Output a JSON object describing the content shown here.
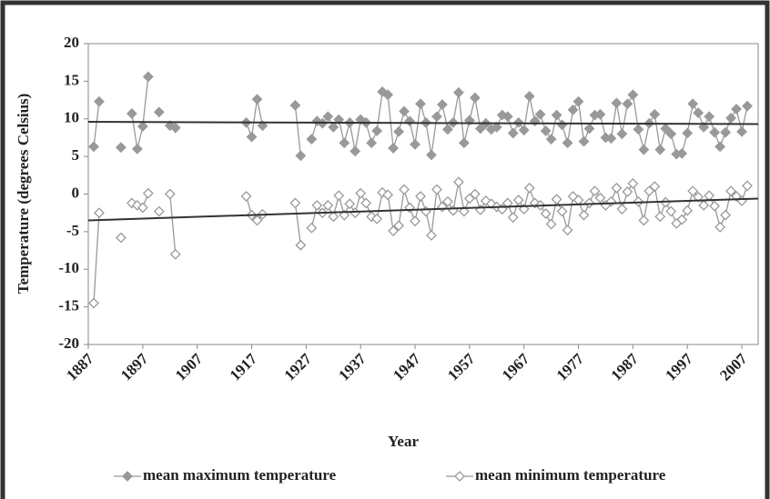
{
  "chart_data": {
    "type": "line",
    "xlabel": "Year",
    "ylabel": "Temperature (degrees Celsius)",
    "xlim": [
      1887,
      2010
    ],
    "ylim": [
      -20,
      20
    ],
    "xticks": [
      1887,
      1897,
      1907,
      1917,
      1927,
      1937,
      1947,
      1957,
      1967,
      1977,
      1987,
      1997,
      2007
    ],
    "yticks": [
      -20,
      -15,
      -10,
      -5,
      0,
      5,
      10,
      15,
      20
    ],
    "x": [
      1888,
      1889,
      1890,
      1891,
      1892,
      1893,
      1894,
      1895,
      1896,
      1897,
      1898,
      1899,
      1900,
      1901,
      1902,
      1903,
      1904,
      1905,
      1906,
      1907,
      1908,
      1909,
      1910,
      1911,
      1912,
      1913,
      1914,
      1915,
      1916,
      1917,
      1918,
      1919,
      1920,
      1921,
      1922,
      1923,
      1924,
      1925,
      1926,
      1927,
      1928,
      1929,
      1930,
      1931,
      1932,
      1933,
      1934,
      1935,
      1936,
      1937,
      1938,
      1939,
      1940,
      1941,
      1942,
      1943,
      1944,
      1945,
      1946,
      1947,
      1948,
      1949,
      1950,
      1951,
      1952,
      1953,
      1954,
      1955,
      1956,
      1957,
      1958,
      1959,
      1960,
      1961,
      1962,
      1963,
      1964,
      1965,
      1966,
      1967,
      1968,
      1969,
      1970,
      1971,
      1972,
      1973,
      1974,
      1975,
      1976,
      1977,
      1978,
      1979,
      1980,
      1981,
      1982,
      1983,
      1984,
      1985,
      1986,
      1987,
      1988,
      1989,
      1990,
      1991,
      1992,
      1993,
      1994,
      1995,
      1996,
      1997,
      1998,
      1999,
      2000,
      2001,
      2002,
      2003,
      2004,
      2005,
      2006,
      2007,
      2008
    ],
    "series": [
      {
        "name": "mean maximum temperature",
        "color": "#999999",
        "marker": "filled",
        "values": [
          6.3,
          12.3,
          null,
          null,
          null,
          6.2,
          null,
          10.7,
          6,
          9,
          15.6,
          null,
          10.9,
          null,
          9.1,
          8.8,
          null,
          null,
          null,
          null,
          null,
          null,
          null,
          null,
          null,
          null,
          null,
          null,
          9.5,
          7.6,
          12.6,
          9.1,
          null,
          null,
          null,
          null,
          null,
          11.8,
          5.1,
          null,
          7.3,
          9.7,
          9.4,
          10.3,
          8.9,
          9.9,
          6.8,
          9.5,
          5.7,
          9.9,
          9.5,
          6.8,
          8.4,
          13.6,
          13.2,
          6.1,
          8.3,
          11,
          9.7,
          6.6,
          12,
          9.5,
          5.2,
          10.3,
          11.9,
          8.6,
          9.5,
          13.5,
          6.8,
          9.8,
          12.8,
          8.7,
          9.4,
          8.6,
          8.9,
          10.5,
          10.3,
          8.1,
          9.5,
          8.5,
          13,
          9.7,
          10.6,
          8.4,
          7.3,
          10.5,
          9.2,
          6.8,
          11.2,
          12.3,
          7,
          8.7,
          10.5,
          10.6,
          7.5,
          7.4,
          12.1,
          8,
          12,
          13.2,
          8.6,
          5.9,
          9.4,
          10.6,
          5.9,
          8.7,
          8,
          5.3,
          5.4,
          8.1,
          12,
          10.8,
          8.9,
          10.3,
          8.2,
          6.3,
          8.2,
          10.1,
          11.3,
          8.3,
          11.7
        ]
      },
      {
        "name": "mean minimum temperature",
        "color": "#999999",
        "marker": "hollow",
        "values": [
          -14.5,
          -2.5,
          null,
          null,
          null,
          -5.8,
          null,
          -1.2,
          -1.5,
          -1.8,
          0.1,
          null,
          -2.3,
          null,
          0,
          -8,
          null,
          null,
          null,
          null,
          null,
          null,
          null,
          null,
          null,
          null,
          null,
          null,
          -0.3,
          -2.8,
          -3.5,
          -2.7,
          null,
          null,
          null,
          null,
          null,
          -1.2,
          -6.8,
          null,
          -4.5,
          -1.5,
          -2.5,
          -1.5,
          -3,
          -0.2,
          -2.8,
          -1.3,
          -2.5,
          0.1,
          -1.2,
          -3,
          -3.3,
          0.2,
          -0.1,
          -4.9,
          -4.2,
          0.6,
          -1.8,
          -3.6,
          -0.3,
          -2.3,
          -5.5,
          0.6,
          -1.7,
          -1,
          -2.2,
          1.6,
          -2.3,
          -0.6,
          0,
          -2.1,
          -0.9,
          -1.3,
          -1.7,
          -2,
          -1.2,
          -3.1,
          -0.8,
          -2,
          0.8,
          -1.2,
          -1.5,
          -2.6,
          -4,
          -0.7,
          -2.3,
          -4.8,
          -0.3,
          -0.8,
          -2.8,
          -1.2,
          0.4,
          -0.5,
          -1.5,
          -1,
          0.8,
          -2,
          0.3,
          1.4,
          -1,
          -3.5,
          0.4,
          1,
          -3,
          -1.1,
          -2.3,
          -3.9,
          -3.4,
          -2.2,
          0.4,
          -0.4,
          -1.5,
          -0.2,
          -1.6,
          -4.4,
          -2.8,
          0.4,
          -0.3,
          -0.9,
          1.1
        ]
      }
    ],
    "trendlines": [
      {
        "color": "#333333",
        "x": [
          1887,
          2010
        ],
        "values": [
          9.6,
          9.3
        ]
      },
      {
        "color": "#333333",
        "x": [
          1887,
          2010
        ],
        "values": [
          -3.5,
          -0.6
        ]
      }
    ]
  }
}
